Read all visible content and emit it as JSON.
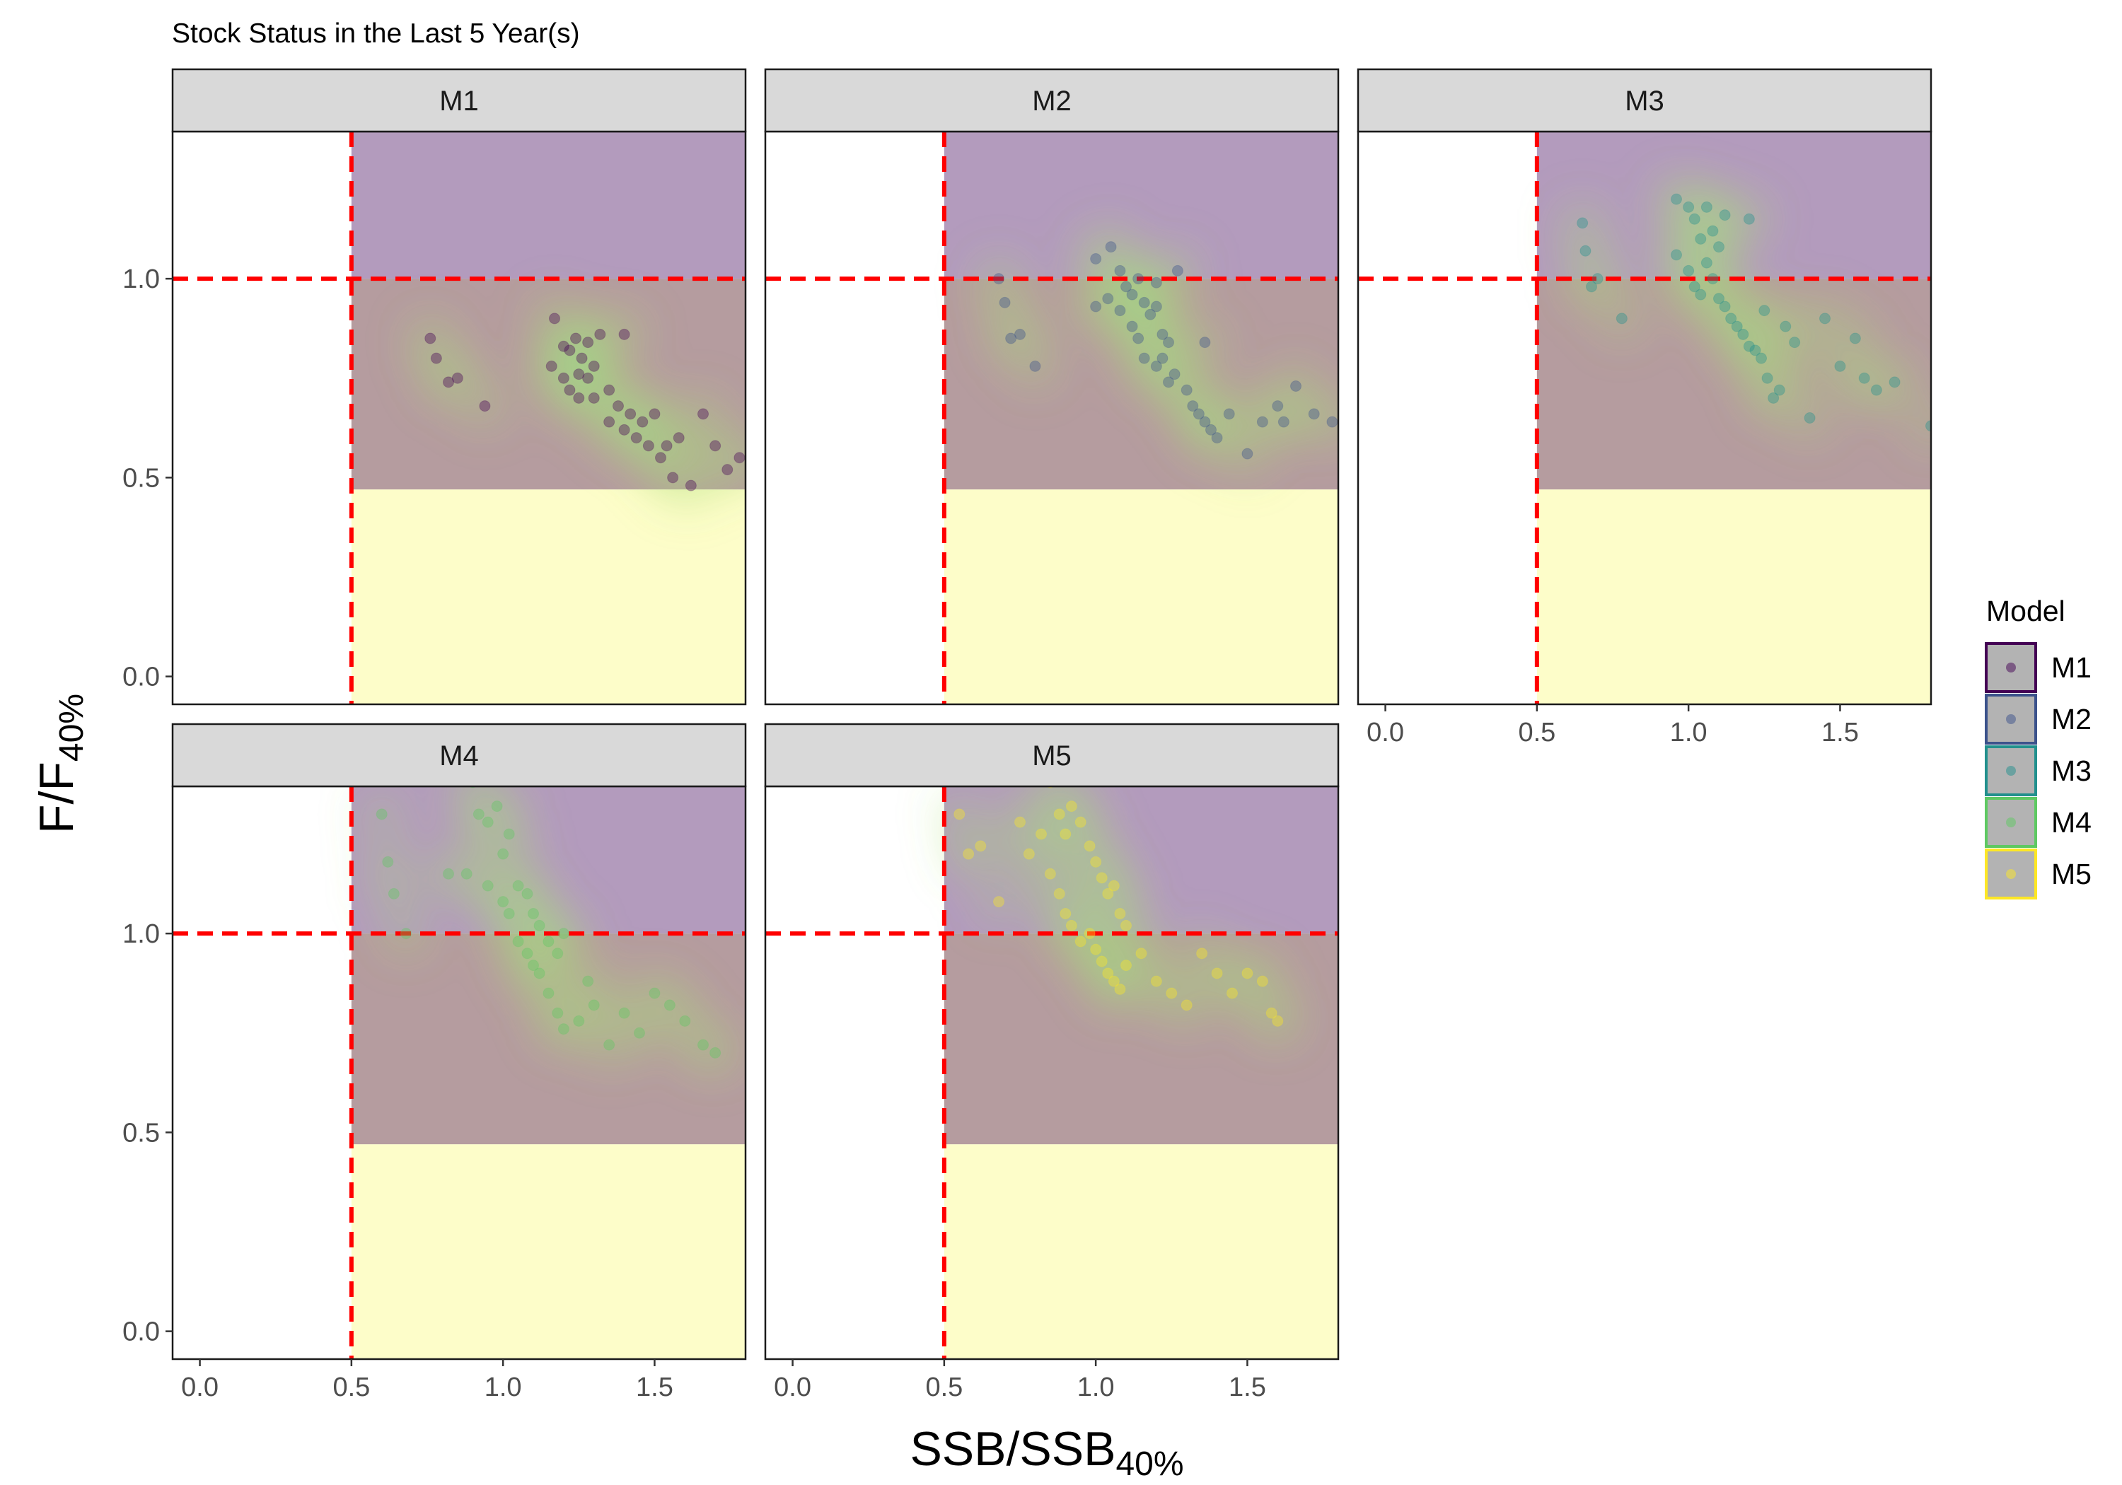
{
  "chart_data": {
    "type": "scatter",
    "title": "Stock Status in the Last 5 Year(s)",
    "xlabel": "SSB/SSB",
    "xlabel_sub": "40%",
    "ylabel": "F/F",
    "ylabel_sub": "40%",
    "xlim": [
      -0.09,
      1.8
    ],
    "ylim": [
      -0.07,
      1.37
    ],
    "x_ticks": [
      0.0,
      0.5,
      1.0,
      1.5
    ],
    "x_tick_labels": [
      "0.0",
      "0.5",
      "1.0",
      "1.5"
    ],
    "y_ticks": [
      0.0,
      0.5,
      1.0
    ],
    "y_tick_labels": [
      "0.0",
      "0.5",
      "1.0"
    ],
    "reference_lines": {
      "x": 0.5,
      "y": 1.0,
      "color": "#ff0000",
      "style": "dashed"
    },
    "regions": [
      {
        "x": [
          0.5,
          1.8
        ],
        "y": [
          1.0,
          1.37
        ],
        "color": "#b39bbd"
      },
      {
        "x": [
          0.5,
          1.8
        ],
        "y": [
          0.47,
          1.0
        ],
        "color": "#b59c9f"
      },
      {
        "x": [
          0.5,
          1.8
        ],
        "y": [
          -0.07,
          0.47
        ],
        "color": "#fdfdc9"
      }
    ],
    "grid": false,
    "legend": {
      "title": "Model",
      "position": "right"
    },
    "panels": [
      {
        "name": "M1",
        "color": "#440154",
        "points": [
          [
            0.76,
            0.85
          ],
          [
            0.78,
            0.8
          ],
          [
            0.82,
            0.74
          ],
          [
            0.85,
            0.75
          ],
          [
            0.94,
            0.68
          ],
          [
            1.17,
            0.9
          ],
          [
            1.2,
            0.83
          ],
          [
            1.22,
            0.82
          ],
          [
            1.24,
            0.85
          ],
          [
            1.26,
            0.8
          ],
          [
            1.28,
            0.84
          ],
          [
            1.16,
            0.78
          ],
          [
            1.2,
            0.75
          ],
          [
            1.22,
            0.72
          ],
          [
            1.25,
            0.7
          ],
          [
            1.28,
            0.75
          ],
          [
            1.3,
            0.7
          ],
          [
            1.32,
            0.86
          ],
          [
            1.35,
            0.72
          ],
          [
            1.38,
            0.68
          ],
          [
            1.4,
            0.62
          ],
          [
            1.42,
            0.66
          ],
          [
            1.44,
            0.6
          ],
          [
            1.46,
            0.64
          ],
          [
            1.48,
            0.58
          ],
          [
            1.5,
            0.66
          ],
          [
            1.52,
            0.55
          ],
          [
            1.54,
            0.58
          ],
          [
            1.56,
            0.5
          ],
          [
            1.58,
            0.6
          ],
          [
            1.62,
            0.48
          ],
          [
            1.66,
            0.66
          ],
          [
            1.7,
            0.58
          ],
          [
            1.74,
            0.52
          ],
          [
            1.78,
            0.55
          ],
          [
            1.25,
            0.76
          ],
          [
            1.3,
            0.78
          ],
          [
            1.35,
            0.64
          ],
          [
            1.4,
            0.86
          ]
        ]
      },
      {
        "name": "M2",
        "color": "#3b528b",
        "points": [
          [
            0.68,
            1.0
          ],
          [
            0.7,
            0.94
          ],
          [
            0.72,
            0.85
          ],
          [
            0.75,
            0.86
          ],
          [
            0.8,
            0.78
          ],
          [
            1.0,
            1.05
          ],
          [
            1.05,
            1.08
          ],
          [
            1.08,
            1.02
          ],
          [
            1.1,
            0.98
          ],
          [
            1.12,
            0.96
          ],
          [
            1.14,
            1.0
          ],
          [
            1.16,
            0.94
          ],
          [
            1.18,
            0.91
          ],
          [
            1.2,
            0.93
          ],
          [
            1.22,
            0.86
          ],
          [
            1.24,
            0.84
          ],
          [
            1.0,
            0.93
          ],
          [
            1.04,
            0.95
          ],
          [
            1.08,
            0.92
          ],
          [
            1.12,
            0.88
          ],
          [
            1.14,
            0.85
          ],
          [
            1.16,
            0.8
          ],
          [
            1.2,
            0.78
          ],
          [
            1.22,
            0.8
          ],
          [
            1.24,
            0.74
          ],
          [
            1.26,
            0.76
          ],
          [
            1.3,
            0.72
          ],
          [
            1.32,
            0.68
          ],
          [
            1.34,
            0.66
          ],
          [
            1.36,
            0.64
          ],
          [
            1.38,
            0.62
          ],
          [
            1.4,
            0.6
          ],
          [
            1.44,
            0.66
          ],
          [
            1.5,
            0.56
          ],
          [
            1.55,
            0.64
          ],
          [
            1.6,
            0.68
          ],
          [
            1.62,
            0.64
          ],
          [
            1.66,
            0.73
          ],
          [
            1.72,
            0.66
          ],
          [
            1.78,
            0.64
          ],
          [
            1.27,
            1.02
          ],
          [
            1.2,
            0.99
          ],
          [
            1.36,
            0.84
          ]
        ]
      },
      {
        "name": "M3",
        "color": "#21908d",
        "points": [
          [
            0.65,
            1.14
          ],
          [
            0.66,
            1.07
          ],
          [
            0.68,
            0.98
          ],
          [
            0.7,
            1.0
          ],
          [
            0.78,
            0.9
          ],
          [
            0.96,
            1.2
          ],
          [
            1.0,
            1.18
          ],
          [
            1.02,
            1.15
          ],
          [
            1.04,
            1.1
          ],
          [
            1.06,
            1.18
          ],
          [
            1.08,
            1.12
          ],
          [
            1.1,
            1.08
          ],
          [
            1.12,
            1.16
          ],
          [
            0.96,
            1.06
          ],
          [
            1.0,
            1.02
          ],
          [
            1.02,
            0.98
          ],
          [
            1.04,
            0.96
          ],
          [
            1.06,
            1.04
          ],
          [
            1.08,
            1.0
          ],
          [
            1.1,
            0.95
          ],
          [
            1.12,
            0.93
          ],
          [
            1.14,
            0.9
          ],
          [
            1.16,
            0.88
          ],
          [
            1.18,
            0.86
          ],
          [
            1.2,
            0.83
          ],
          [
            1.22,
            0.82
          ],
          [
            1.24,
            0.8
          ],
          [
            1.26,
            0.75
          ],
          [
            1.28,
            0.7
          ],
          [
            1.3,
            0.72
          ],
          [
            1.32,
            0.88
          ],
          [
            1.35,
            0.84
          ],
          [
            1.4,
            0.65
          ],
          [
            1.45,
            0.9
          ],
          [
            1.5,
            0.78
          ],
          [
            1.55,
            0.85
          ],
          [
            1.58,
            0.75
          ],
          [
            1.62,
            0.72
          ],
          [
            1.68,
            0.74
          ],
          [
            1.8,
            0.63
          ],
          [
            1.2,
            1.15
          ],
          [
            1.25,
            0.92
          ]
        ]
      },
      {
        "name": "M4",
        "color": "#5ec962",
        "points": [
          [
            0.6,
            1.3
          ],
          [
            0.62,
            1.18
          ],
          [
            0.64,
            1.1
          ],
          [
            0.68,
            1.0
          ],
          [
            0.82,
            1.15
          ],
          [
            0.9,
            1.38
          ],
          [
            0.92,
            1.3
          ],
          [
            0.95,
            1.28
          ],
          [
            0.98,
            1.32
          ],
          [
            1.0,
            1.2
          ],
          [
            1.02,
            1.25
          ],
          [
            1.05,
            1.12
          ],
          [
            1.08,
            1.1
          ],
          [
            1.1,
            1.05
          ],
          [
            1.12,
            1.02
          ],
          [
            1.15,
            0.98
          ],
          [
            1.18,
            0.95
          ],
          [
            1.2,
            1.0
          ],
          [
            0.88,
            1.15
          ],
          [
            0.95,
            1.12
          ],
          [
            1.0,
            1.08
          ],
          [
            1.02,
            1.05
          ],
          [
            1.05,
            0.98
          ],
          [
            1.08,
            0.95
          ],
          [
            1.1,
            0.92
          ],
          [
            1.12,
            0.9
          ],
          [
            1.15,
            0.85
          ],
          [
            1.18,
            0.8
          ],
          [
            1.2,
            0.76
          ],
          [
            1.25,
            0.78
          ],
          [
            1.28,
            0.88
          ],
          [
            1.3,
            0.82
          ],
          [
            1.35,
            0.72
          ],
          [
            1.4,
            0.8
          ],
          [
            1.45,
            0.75
          ],
          [
            1.5,
            0.85
          ],
          [
            1.55,
            0.82
          ],
          [
            1.6,
            0.78
          ],
          [
            1.66,
            0.72
          ],
          [
            1.7,
            0.7
          ]
        ]
      },
      {
        "name": "M5",
        "color": "#fde725",
        "points": [
          [
            0.55,
            1.3
          ],
          [
            0.58,
            1.2
          ],
          [
            0.62,
            1.22
          ],
          [
            0.68,
            1.08
          ],
          [
            0.75,
            1.28
          ],
          [
            0.78,
            1.2
          ],
          [
            0.82,
            1.25
          ],
          [
            0.85,
            1.38
          ],
          [
            0.88,
            1.3
          ],
          [
            0.9,
            1.25
          ],
          [
            0.92,
            1.32
          ],
          [
            0.95,
            1.28
          ],
          [
            0.98,
            1.22
          ],
          [
            1.0,
            1.18
          ],
          [
            1.02,
            1.14
          ],
          [
            1.04,
            1.1
          ],
          [
            1.06,
            1.12
          ],
          [
            1.08,
            1.05
          ],
          [
            1.1,
            1.02
          ],
          [
            0.85,
            1.15
          ],
          [
            0.88,
            1.1
          ],
          [
            0.9,
            1.05
          ],
          [
            0.92,
            1.02
          ],
          [
            0.95,
            0.98
          ],
          [
            0.98,
            1.0
          ],
          [
            1.0,
            0.96
          ],
          [
            1.02,
            0.93
          ],
          [
            1.04,
            0.9
          ],
          [
            1.06,
            0.88
          ],
          [
            1.08,
            0.86
          ],
          [
            1.1,
            0.92
          ],
          [
            1.15,
            0.95
          ],
          [
            1.2,
            0.88
          ],
          [
            1.25,
            0.85
          ],
          [
            1.3,
            0.82
          ],
          [
            1.35,
            0.95
          ],
          [
            1.4,
            0.9
          ],
          [
            1.45,
            0.85
          ],
          [
            1.5,
            0.9
          ],
          [
            1.55,
            0.88
          ],
          [
            1.58,
            0.8
          ],
          [
            1.6,
            0.78
          ]
        ]
      }
    ]
  }
}
